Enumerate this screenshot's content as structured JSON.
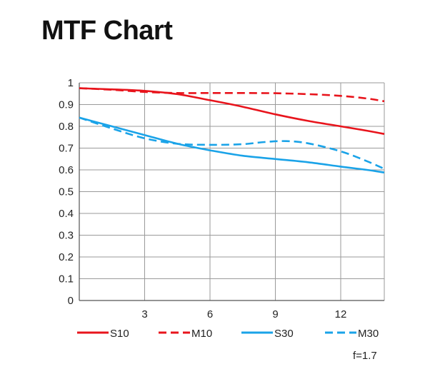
{
  "title": "MTF Chart",
  "chart_data": {
    "type": "line",
    "title": "MTF Chart",
    "xlabel": "",
    "ylabel": "",
    "xlim": [
      0,
      14
    ],
    "ylim": [
      0,
      1
    ],
    "xticks": [
      3,
      6,
      9,
      12
    ],
    "xtick_labels": [
      "3",
      "6",
      "9",
      "12"
    ],
    "yticks": [
      0,
      0.1,
      0.2,
      0.3,
      0.4,
      0.5,
      0.6,
      0.7,
      0.8,
      0.9,
      1
    ],
    "ytick_labels": [
      "0",
      "0.1",
      "0.2",
      "0.3",
      "0.4",
      "0.5",
      "0.6",
      "0.7",
      "0.8",
      "0.9",
      "1"
    ],
    "grid": true,
    "legend_position": "bottom",
    "series": [
      {
        "name": "S10",
        "color": "#e8141c",
        "dash": "solid",
        "x": [
          0,
          1.5,
          3,
          4.5,
          6,
          7.5,
          9,
          10.5,
          12,
          13.2,
          14
        ],
        "y": [
          0.975,
          0.97,
          0.963,
          0.948,
          0.92,
          0.89,
          0.855,
          0.825,
          0.8,
          0.78,
          0.765
        ]
      },
      {
        "name": "M10",
        "color": "#e8141c",
        "dash": "dashed",
        "x": [
          0,
          1.5,
          3,
          4.5,
          6,
          7.5,
          9,
          10.5,
          12,
          13.2,
          14
        ],
        "y": [
          0.975,
          0.968,
          0.958,
          0.953,
          0.953,
          0.953,
          0.952,
          0.948,
          0.94,
          0.928,
          0.915
        ]
      },
      {
        "name": "S30",
        "color": "#1aa3e8",
        "dash": "solid",
        "x": [
          0,
          1.5,
          3,
          4.5,
          6,
          7.5,
          9,
          10.5,
          12,
          13.2,
          14
        ],
        "y": [
          0.84,
          0.8,
          0.76,
          0.72,
          0.69,
          0.665,
          0.65,
          0.635,
          0.615,
          0.6,
          0.588
        ]
      },
      {
        "name": "M30",
        "color": "#1aa3e8",
        "dash": "dashed",
        "x": [
          0,
          1.5,
          3,
          4.5,
          6,
          7.5,
          8.5,
          9.5,
          10.5,
          12,
          13.2,
          14
        ],
        "y": [
          0.84,
          0.79,
          0.745,
          0.72,
          0.715,
          0.718,
          0.728,
          0.732,
          0.722,
          0.685,
          0.64,
          0.605
        ]
      }
    ]
  },
  "footnote": "f=1.7"
}
